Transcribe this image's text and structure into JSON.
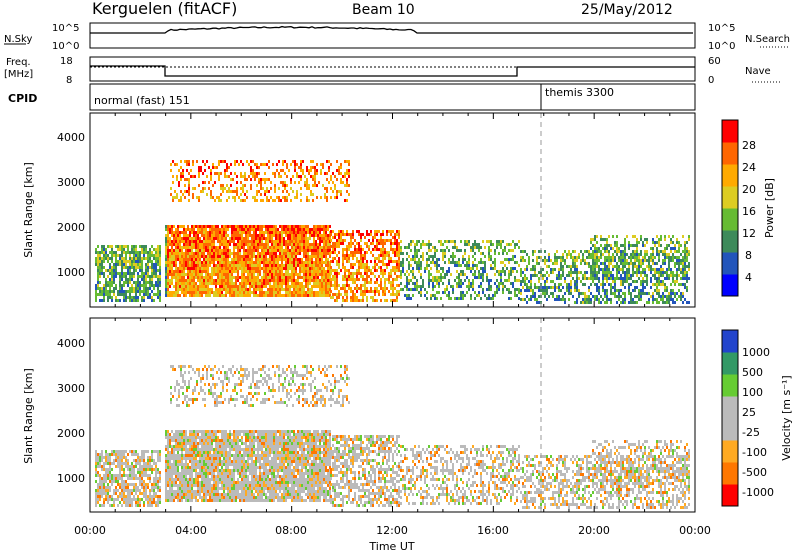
{
  "header": {
    "station": "Kerguelen (fitACF)",
    "beam": "Beam 10",
    "date": "25/May/2012"
  },
  "nsky_panel": {
    "left_label": "N.Sky",
    "left_ticks": [
      "10^5",
      "10^0"
    ],
    "right_label": "N.Search",
    "right_ticks": [
      "10^5",
      "10^0"
    ]
  },
  "freq_panel": {
    "left_label_1": "Freq.",
    "left_label_2": "[MHz]",
    "left_ticks": [
      "18",
      "8"
    ],
    "right_label": "Nave",
    "right_ticks": [
      "60",
      "0"
    ]
  },
  "cpid": {
    "label": "CPID",
    "segments": [
      "normal (fast) 151",
      "themis 3300"
    ]
  },
  "time_axis": {
    "label": "Time UT",
    "ticks": [
      "00:00",
      "04:00",
      "08:00",
      "12:00",
      "16:00",
      "20:00",
      "00:00"
    ]
  },
  "colors": {
    "power": [
      "#0000ff",
      "#2255bb",
      "#3d8a5a",
      "#66bb33",
      "#ddcc22",
      "#ffaa00",
      "#ff6600",
      "#ff0000"
    ],
    "velocity": [
      "#2244cc",
      "#339966",
      "#66cc33",
      "#bbbbbb",
      "#bbbbbb",
      "#ffaa22",
      "#ff7700",
      "#ff0000"
    ]
  },
  "chart_data": [
    {
      "type": "heatmap",
      "name": "power",
      "ylabel": "Slant Range [km]",
      "xlabel": "Time UT",
      "ylim": [
        180,
        4600
      ],
      "yticks": [
        "1000",
        "2000",
        "3000",
        "4000"
      ],
      "colorbar_label": "Power [dB]",
      "colorbar_ticks": [
        "28",
        "24",
        "20",
        "16",
        "12",
        "8",
        "4"
      ]
    },
    {
      "type": "heatmap",
      "name": "velocity",
      "ylabel": "Slant Range [km]",
      "xlabel": "Time UT",
      "ylim": [
        180,
        4600
      ],
      "yticks": [
        "1000",
        "2000",
        "3000",
        "4000"
      ],
      "colorbar_label": "Velocity [m s⁻¹]",
      "colorbar_ticks": [
        "1000",
        "500",
        "100",
        "25",
        "-25",
        "-100",
        "-500",
        "-1000"
      ]
    }
  ]
}
